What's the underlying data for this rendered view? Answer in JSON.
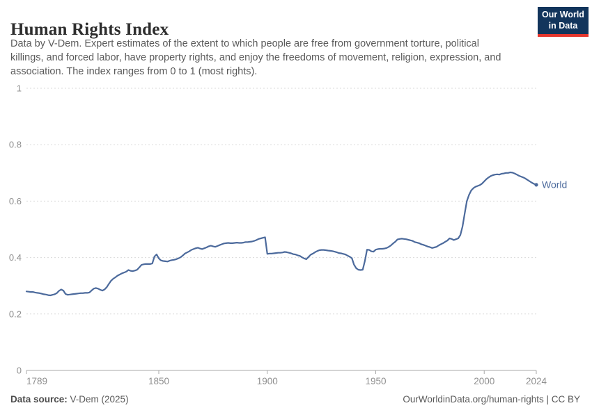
{
  "header": {
    "title": "Human Rights Index",
    "subtitle": "Data by V-Dem. Expert estimates of the extent to which people are free from government torture, political\nkillings, and forced labor, have property rights, and enjoy the freedoms of movement, religion, expression, and\nassociation. The index ranges from 0 to 1 (most rights).",
    "logo_line1": "Our World",
    "logo_line2": "in Data"
  },
  "footer": {
    "source_label": "Data source:",
    "source_value": " V-Dem (2025)",
    "credit": "OurWorldinData.org/human-rights | CC BY"
  },
  "colors": {
    "line": "#4c6a9c",
    "end_label": "#4c6a9c",
    "grid": "#d9d9d9",
    "axis": "#a8a8a8",
    "axis_text": "#8f8f8f",
    "logo_bg": "#12355c",
    "logo_red": "#e5362d"
  },
  "chart_data": {
    "type": "line",
    "title": "Human Rights Index",
    "xlabel": "",
    "ylabel": "",
    "xlim": [
      1789,
      2024
    ],
    "ylim": [
      0,
      1
    ],
    "x_ticks": [
      1789,
      1850,
      1900,
      1950,
      2000,
      2024
    ],
    "y_ticks": [
      0,
      0.2,
      0.4,
      0.6,
      0.8,
      1
    ],
    "grid": "horizontal-dashed",
    "legend_position": "end-of-line",
    "series": [
      {
        "name": "World",
        "end_label": "World",
        "points": [
          [
            1789,
            0.28
          ],
          [
            1790,
            0.279
          ],
          [
            1791,
            0.278
          ],
          [
            1792,
            0.278
          ],
          [
            1793,
            0.276
          ],
          [
            1794,
            0.275
          ],
          [
            1795,
            0.274
          ],
          [
            1796,
            0.272
          ],
          [
            1797,
            0.27
          ],
          [
            1798,
            0.269
          ],
          [
            1799,
            0.267
          ],
          [
            1800,
            0.266
          ],
          [
            1801,
            0.268
          ],
          [
            1802,
            0.27
          ],
          [
            1803,
            0.274
          ],
          [
            1804,
            0.282
          ],
          [
            1805,
            0.287
          ],
          [
            1806,
            0.283
          ],
          [
            1807,
            0.271
          ],
          [
            1808,
            0.268
          ],
          [
            1809,
            0.269
          ],
          [
            1810,
            0.27
          ],
          [
            1811,
            0.271
          ],
          [
            1812,
            0.272
          ],
          [
            1813,
            0.273
          ],
          [
            1814,
            0.274
          ],
          [
            1815,
            0.274
          ],
          [
            1816,
            0.275
          ],
          [
            1817,
            0.275
          ],
          [
            1818,
            0.276
          ],
          [
            1819,
            0.283
          ],
          [
            1820,
            0.29
          ],
          [
            1821,
            0.292
          ],
          [
            1822,
            0.29
          ],
          [
            1823,
            0.286
          ],
          [
            1824,
            0.283
          ],
          [
            1825,
            0.287
          ],
          [
            1826,
            0.295
          ],
          [
            1827,
            0.307
          ],
          [
            1828,
            0.318
          ],
          [
            1829,
            0.325
          ],
          [
            1830,
            0.33
          ],
          [
            1831,
            0.336
          ],
          [
            1832,
            0.34
          ],
          [
            1833,
            0.344
          ],
          [
            1834,
            0.347
          ],
          [
            1835,
            0.35
          ],
          [
            1836,
            0.356
          ],
          [
            1837,
            0.353
          ],
          [
            1838,
            0.352
          ],
          [
            1839,
            0.354
          ],
          [
            1840,
            0.357
          ],
          [
            1841,
            0.365
          ],
          [
            1842,
            0.374
          ],
          [
            1843,
            0.376
          ],
          [
            1844,
            0.377
          ],
          [
            1845,
            0.377
          ],
          [
            1846,
            0.377
          ],
          [
            1847,
            0.379
          ],
          [
            1848,
            0.404
          ],
          [
            1849,
            0.411
          ],
          [
            1850,
            0.397
          ],
          [
            1851,
            0.39
          ],
          [
            1852,
            0.388
          ],
          [
            1853,
            0.387
          ],
          [
            1854,
            0.386
          ],
          [
            1855,
            0.389
          ],
          [
            1856,
            0.391
          ],
          [
            1857,
            0.392
          ],
          [
            1858,
            0.394
          ],
          [
            1859,
            0.397
          ],
          [
            1860,
            0.401
          ],
          [
            1861,
            0.407
          ],
          [
            1862,
            0.414
          ],
          [
            1863,
            0.418
          ],
          [
            1864,
            0.422
          ],
          [
            1865,
            0.427
          ],
          [
            1866,
            0.43
          ],
          [
            1867,
            0.433
          ],
          [
            1868,
            0.435
          ],
          [
            1869,
            0.432
          ],
          [
            1870,
            0.43
          ],
          [
            1871,
            0.433
          ],
          [
            1872,
            0.436
          ],
          [
            1873,
            0.44
          ],
          [
            1874,
            0.442
          ],
          [
            1875,
            0.44
          ],
          [
            1876,
            0.438
          ],
          [
            1877,
            0.441
          ],
          [
            1878,
            0.444
          ],
          [
            1879,
            0.447
          ],
          [
            1880,
            0.45
          ],
          [
            1881,
            0.451
          ],
          [
            1882,
            0.452
          ],
          [
            1883,
            0.451
          ],
          [
            1884,
            0.451
          ],
          [
            1885,
            0.452
          ],
          [
            1886,
            0.453
          ],
          [
            1887,
            0.452
          ],
          [
            1888,
            0.452
          ],
          [
            1889,
            0.453
          ],
          [
            1890,
            0.455
          ],
          [
            1891,
            0.455
          ],
          [
            1892,
            0.456
          ],
          [
            1893,
            0.457
          ],
          [
            1894,
            0.459
          ],
          [
            1895,
            0.462
          ],
          [
            1896,
            0.466
          ],
          [
            1897,
            0.468
          ],
          [
            1898,
            0.47
          ],
          [
            1899,
            0.472
          ],
          [
            1900,
            0.413
          ],
          [
            1901,
            0.414
          ],
          [
            1902,
            0.414
          ],
          [
            1903,
            0.415
          ],
          [
            1904,
            0.416
          ],
          [
            1905,
            0.417
          ],
          [
            1906,
            0.417
          ],
          [
            1907,
            0.418
          ],
          [
            1908,
            0.42
          ],
          [
            1909,
            0.419
          ],
          [
            1910,
            0.417
          ],
          [
            1911,
            0.415
          ],
          [
            1912,
            0.412
          ],
          [
            1913,
            0.411
          ],
          [
            1914,
            0.408
          ],
          [
            1915,
            0.406
          ],
          [
            1916,
            0.401
          ],
          [
            1917,
            0.397
          ],
          [
            1918,
            0.394
          ],
          [
            1919,
            0.402
          ],
          [
            1920,
            0.41
          ],
          [
            1921,
            0.414
          ],
          [
            1922,
            0.419
          ],
          [
            1923,
            0.423
          ],
          [
            1924,
            0.426
          ],
          [
            1925,
            0.427
          ],
          [
            1926,
            0.427
          ],
          [
            1927,
            0.426
          ],
          [
            1928,
            0.425
          ],
          [
            1929,
            0.424
          ],
          [
            1930,
            0.423
          ],
          [
            1931,
            0.421
          ],
          [
            1932,
            0.419
          ],
          [
            1933,
            0.416
          ],
          [
            1934,
            0.415
          ],
          [
            1935,
            0.413
          ],
          [
            1936,
            0.411
          ],
          [
            1937,
            0.407
          ],
          [
            1938,
            0.403
          ],
          [
            1939,
            0.398
          ],
          [
            1940,
            0.375
          ],
          [
            1941,
            0.362
          ],
          [
            1942,
            0.357
          ],
          [
            1943,
            0.356
          ],
          [
            1944,
            0.357
          ],
          [
            1945,
            0.388
          ],
          [
            1946,
            0.428
          ],
          [
            1947,
            0.427
          ],
          [
            1948,
            0.422
          ],
          [
            1949,
            0.421
          ],
          [
            1950,
            0.428
          ],
          [
            1951,
            0.43
          ],
          [
            1952,
            0.431
          ],
          [
            1953,
            0.431
          ],
          [
            1954,
            0.432
          ],
          [
            1955,
            0.434
          ],
          [
            1956,
            0.438
          ],
          [
            1957,
            0.443
          ],
          [
            1958,
            0.45
          ],
          [
            1959,
            0.456
          ],
          [
            1960,
            0.464
          ],
          [
            1961,
            0.466
          ],
          [
            1962,
            0.467
          ],
          [
            1963,
            0.466
          ],
          [
            1964,
            0.465
          ],
          [
            1965,
            0.463
          ],
          [
            1966,
            0.461
          ],
          [
            1967,
            0.459
          ],
          [
            1968,
            0.455
          ],
          [
            1969,
            0.453
          ],
          [
            1970,
            0.451
          ],
          [
            1971,
            0.447
          ],
          [
            1972,
            0.445
          ],
          [
            1973,
            0.442
          ],
          [
            1974,
            0.439
          ],
          [
            1975,
            0.437
          ],
          [
            1976,
            0.434
          ],
          [
            1977,
            0.436
          ],
          [
            1978,
            0.438
          ],
          [
            1979,
            0.443
          ],
          [
            1980,
            0.447
          ],
          [
            1981,
            0.451
          ],
          [
            1982,
            0.456
          ],
          [
            1983,
            0.46
          ],
          [
            1984,
            0.468
          ],
          [
            1985,
            0.466
          ],
          [
            1986,
            0.462
          ],
          [
            1987,
            0.465
          ],
          [
            1988,
            0.468
          ],
          [
            1989,
            0.48
          ],
          [
            1990,
            0.51
          ],
          [
            1991,
            0.556
          ],
          [
            1992,
            0.6
          ],
          [
            1993,
            0.622
          ],
          [
            1994,
            0.638
          ],
          [
            1995,
            0.646
          ],
          [
            1996,
            0.651
          ],
          [
            1997,
            0.654
          ],
          [
            1998,
            0.657
          ],
          [
            1999,
            0.662
          ],
          [
            2000,
            0.67
          ],
          [
            2001,
            0.678
          ],
          [
            2002,
            0.684
          ],
          [
            2003,
            0.689
          ],
          [
            2004,
            0.692
          ],
          [
            2005,
            0.694
          ],
          [
            2006,
            0.695
          ],
          [
            2007,
            0.694
          ],
          [
            2008,
            0.697
          ],
          [
            2009,
            0.698
          ],
          [
            2010,
            0.7
          ],
          [
            2011,
            0.7
          ],
          [
            2012,
            0.702
          ],
          [
            2013,
            0.701
          ],
          [
            2014,
            0.698
          ],
          [
            2015,
            0.694
          ],
          [
            2016,
            0.69
          ],
          [
            2017,
            0.687
          ],
          [
            2018,
            0.684
          ],
          [
            2019,
            0.68
          ],
          [
            2020,
            0.675
          ],
          [
            2021,
            0.67
          ],
          [
            2022,
            0.665
          ],
          [
            2023,
            0.661
          ],
          [
            2024,
            0.658
          ]
        ]
      }
    ]
  }
}
